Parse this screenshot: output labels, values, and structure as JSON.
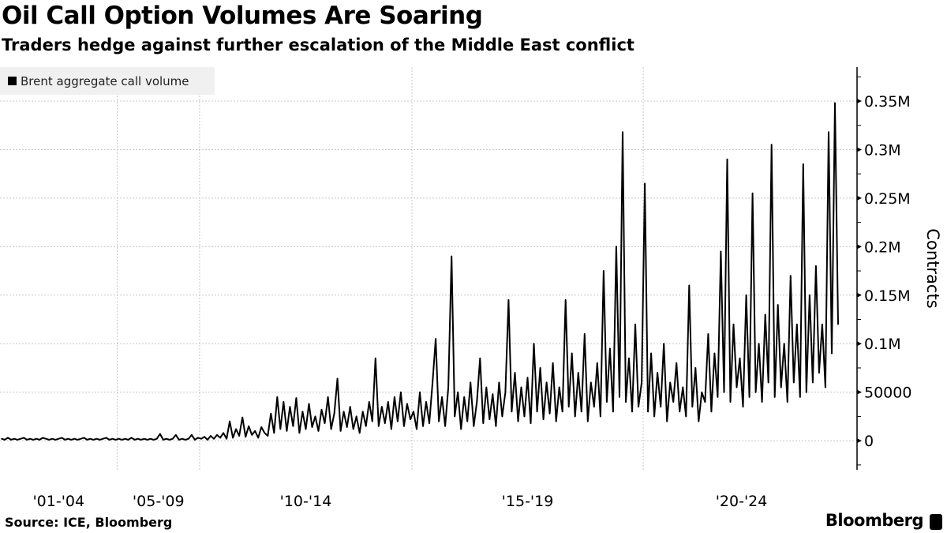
{
  "chart_data": {
    "type": "line",
    "title": "Oil Call Option Volumes Are Soaring",
    "subtitle": "Traders hedge against further escalation of the Middle East conflict",
    "ylabel": "Contracts",
    "xlabel": "",
    "ylim": [
      -30000,
      385000
    ],
    "y_ticks": [
      0,
      50000,
      100000,
      150000,
      200000,
      250000,
      300000,
      350000
    ],
    "y_tick_labels": [
      "0",
      "50000",
      "0.1M",
      "0.15M",
      "0.2M",
      "0.25M",
      "0.3M",
      "0.35M"
    ],
    "grid": true,
    "legend_position": "top-left",
    "value_unit": "thousand contracts",
    "series": [
      {
        "name": "Brent aggregate call volume",
        "color": "#000000",
        "segments": [
          {
            "label": "'01-'04",
            "values": [
              2,
              1,
              3,
              1,
              2,
              1,
              2,
              3,
              1,
              2,
              1,
              2,
              1,
              3,
              2,
              1,
              2,
              1,
              2,
              3,
              1,
              2,
              1,
              2,
              1,
              2,
              3,
              1,
              2,
              1,
              2,
              1,
              2,
              3,
              1,
              2,
              1
            ]
          },
          {
            "label": "'05-'09",
            "values": [
              2,
              1,
              2,
              1,
              3,
              1,
              2,
              1,
              2,
              1,
              2,
              1,
              2,
              7,
              1,
              2,
              1,
              2,
              6,
              1,
              2,
              1,
              2,
              6,
              1,
              3
            ]
          },
          {
            "label": "'10-'14",
            "values": [
              2,
              4,
              1,
              5,
              2,
              6,
              3,
              8,
              2,
              20,
              3,
              12,
              5,
              24,
              4,
              15,
              6,
              10,
              3,
              14,
              8,
              5,
              28,
              8,
              45,
              12,
              40,
              10,
              35,
              15,
              44,
              8,
              30,
              12,
              38,
              14,
              25,
              10,
              32,
              18,
              45,
              12,
              28,
              64,
              10,
              30,
              14,
              35,
              12,
              25,
              8,
              30,
              15,
              40,
              20,
              85,
              15,
              35,
              18,
              40,
              12,
              45,
              20,
              50,
              15,
              38,
              22
            ]
          },
          {
            "label": "'15-'19",
            "values": [
              30,
              12,
              50,
              15,
              40,
              18,
              60,
              105,
              20,
              45,
              15,
              55,
              190,
              25,
              50,
              12,
              45,
              20,
              60,
              15,
              40,
              85,
              18,
              55,
              22,
              48,
              15,
              60,
              25,
              50,
              145,
              30,
              70,
              20,
              55,
              25,
              65,
              18,
              100,
              30,
              75,
              22,
              60,
              28,
              80,
              20,
              55,
              30,
              145,
              35,
              90,
              25,
              70,
              30,
              110,
              20,
              60,
              35,
              80,
              25,
              175,
              40,
              95,
              30,
              200,
              45,
              318,
              40,
              85,
              30,
              120,
              35,
              60
            ]
          },
          {
            "label": "'20-'24",
            "values": [
              265,
              30,
              90,
              25,
              70,
              35,
              100,
              20,
              60,
              40,
              80,
              30,
              55,
              25,
              160,
              35,
              75,
              20,
              50,
              40,
              110,
              30,
              90,
              45,
              195,
              50,
              290,
              40,
              120,
              55,
              85,
              35,
              150,
              45,
              255,
              50,
              100,
              40,
              130,
              60,
              305,
              45,
              140,
              55,
              100,
              40,
              170,
              60,
              120,
              45,
              285,
              50,
              150,
              60,
              180,
              70,
              120,
              55,
              318,
              90,
              348,
              120
            ]
          }
        ]
      }
    ]
  },
  "legend": {
    "label": "Brent aggregate call volume"
  },
  "footer": {
    "source": "Source: ICE, Bloomberg",
    "brand": "Bloomberg"
  }
}
